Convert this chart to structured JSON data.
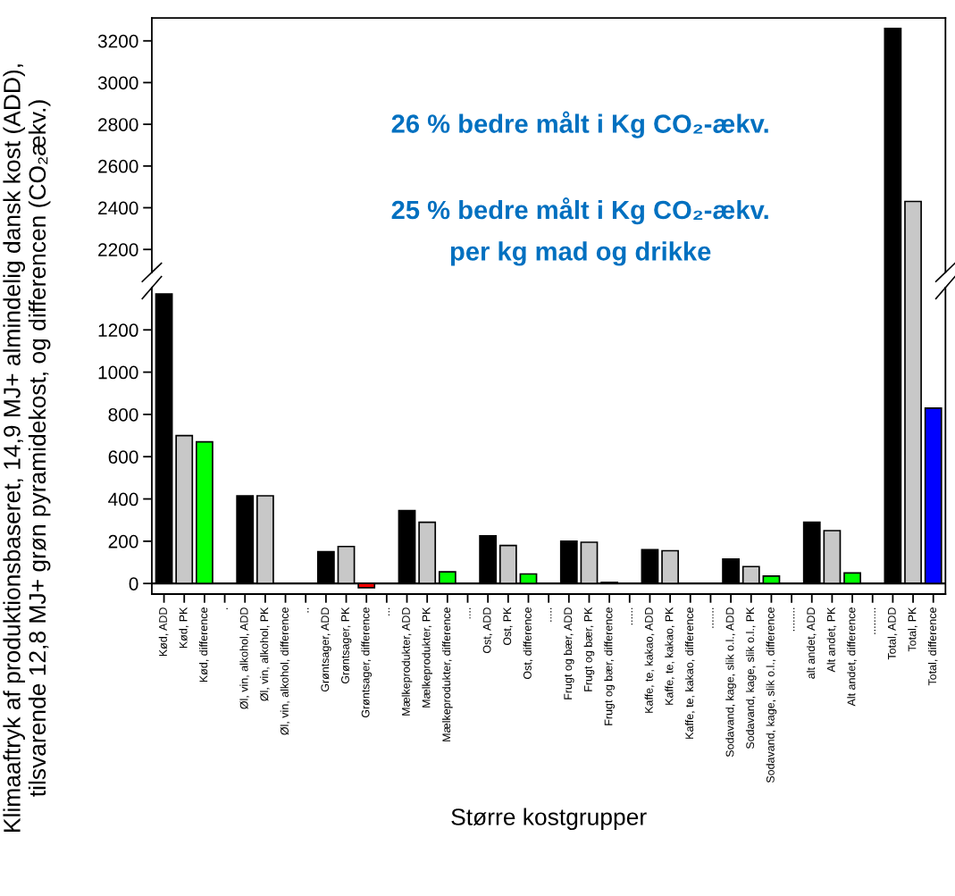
{
  "chart_data": [
    {
      "type": "bar",
      "ylabel": "Klimaaftryk af produktionsbaseret, 14,9 MJ+ almindelig dansk kost (ADD),\ntilsvarende 12,8 MJ+ grøn pyramidekost, og differencen (CO₂ækv.)",
      "annotations": [
        "26 % bedre målt i Kg CO₂-ækv.",
        "25 % bedre målt i Kg CO₂-ækv.\nper kg mad og drikke"
      ],
      "values": [
        null,
        null,
        null,
        null,
        null,
        null,
        null,
        null,
        null,
        null,
        null,
        null,
        null,
        null,
        null,
        null,
        null,
        null,
        null,
        null,
        null,
        null,
        null,
        null,
        null,
        null,
        null,
        null,
        null,
        null,
        null,
        null,
        null,
        null,
        null,
        null,
        3260,
        2430,
        null
      ],
      "colors": [
        "#000000",
        "#c8c8c8",
        "#00ff00",
        null,
        "#000000",
        "#c8c8c8",
        "#00ff00",
        null,
        "#000000",
        "#c8c8c8",
        "#ff0000",
        null,
        "#000000",
        "#c8c8c8",
        "#00ff00",
        null,
        "#000000",
        "#c8c8c8",
        "#00ff00",
        null,
        "#000000",
        "#c8c8c8",
        "#00ff00",
        null,
        "#000000",
        "#c8c8c8",
        "#00ff00",
        null,
        "#000000",
        "#c8c8c8",
        "#00ff00",
        null,
        "#000000",
        "#c8c8c8",
        "#00ff00",
        null,
        "#000000",
        "#c8c8c8",
        "#0000ff"
      ],
      "ylim": [
        2090,
        3310
      ],
      "yticks": [
        2200,
        2400,
        2600,
        2800,
        3000,
        3200
      ],
      "tick_labels": "y",
      "grid": false,
      "legend": false
    },
    {
      "type": "bar",
      "xlabel": "Større kostgrupper",
      "categories": [
        "Kød, ADD",
        "Kød, PK",
        "Kød, difference",
        ".",
        "Øl, vin, alkohol, ADD",
        "Øl, vin, alkohol, PK",
        "Øl, vin, alkohol, difference",
        "..",
        "Grøntsager, ADD",
        "Grøntsager, PK",
        "Grøntsager, difference",
        "...",
        "Mælkeprodukter, ADD",
        "Mælkeprodukter, PK",
        "Mælkeprodukter, difference",
        "....",
        "Ost, ADD",
        "Ost, PK",
        "Ost, difference",
        ".....",
        "Frugt og bær, ADD",
        "Frugt og bær, PK",
        "Frugt og bær, difference",
        "......",
        "Kaffe, te, kakao, ADD",
        "Kaffe, te, kakao, PK",
        "Kaffe, te, kakao, difference",
        ".......",
        "Sodavand, kage, slik o.l., ADD",
        "Sodavand, kage, slik o.l., PK",
        "Sodavand, kage, slik o.l., difference",
        "........",
        "alt andet, ADD",
        "Alt andet, PK",
        "Alt andet, difference",
        ".........",
        "Total, ADD",
        "Total, PK",
        "Total, difference"
      ],
      "values": [
        1370,
        700,
        670,
        null,
        415,
        415,
        null,
        null,
        150,
        175,
        -20,
        null,
        345,
        290,
        55,
        null,
        225,
        180,
        45,
        null,
        200,
        195,
        5,
        null,
        160,
        155,
        null,
        null,
        115,
        80,
        35,
        null,
        290,
        250,
        50,
        null,
        null,
        null,
        830
      ],
      "colors": [
        "#000000",
        "#c8c8c8",
        "#00ff00",
        null,
        "#000000",
        "#c8c8c8",
        "#00ff00",
        null,
        "#000000",
        "#c8c8c8",
        "#ff0000",
        null,
        "#000000",
        "#c8c8c8",
        "#00ff00",
        null,
        "#000000",
        "#c8c8c8",
        "#00ff00",
        null,
        "#000000",
        "#c8c8c8",
        "#00ff00",
        null,
        "#000000",
        "#c8c8c8",
        "#00ff00",
        null,
        "#000000",
        "#c8c8c8",
        "#00ff00",
        null,
        "#000000",
        "#c8c8c8",
        "#00ff00",
        null,
        "#000000",
        "#c8c8c8",
        "#0000ff"
      ],
      "ylim": [
        -50,
        1400
      ],
      "yticks": [
        0,
        200,
        400,
        600,
        800,
        1000,
        1200
      ],
      "ref_lines": [
        {
          "axis": "y",
          "value": 0,
          "color": "#000000"
        }
      ],
      "grid": false,
      "legend": false
    }
  ]
}
